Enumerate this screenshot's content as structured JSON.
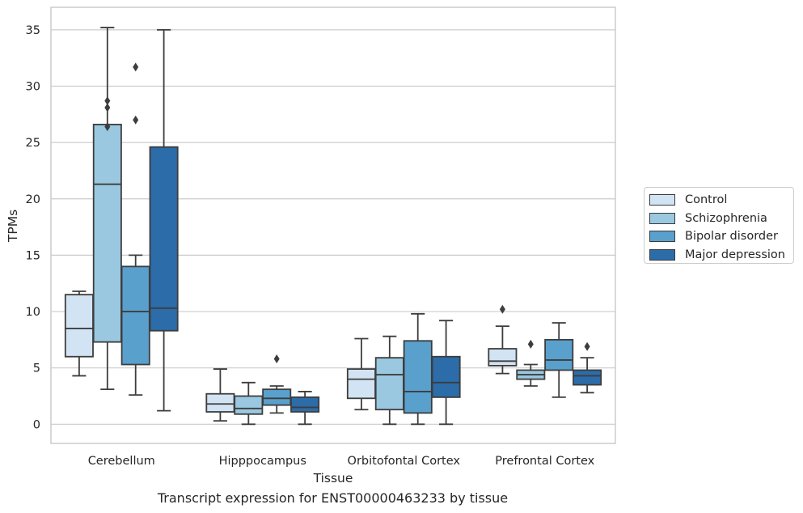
{
  "chart_data": {
    "type": "boxplot",
    "xlabel": "Tissue",
    "ylabel": "TPMs",
    "caption": "Transcript expression for ENST00000463233 by tissue",
    "ylim": [
      -1.7,
      37
    ],
    "yticks": [
      0,
      5,
      10,
      15,
      20,
      25,
      30,
      35
    ],
    "grid": true,
    "legend_position": "right",
    "categories": [
      "Cerebellum",
      "Hipppocampus",
      "Orbitofontal Cortex",
      "Prefrontal Cortex"
    ],
    "series": [
      {
        "name": "Control",
        "color": "#d2e3f3",
        "boxes": [
          {
            "whisker_low": 4.3,
            "q1": 6.0,
            "median": 8.5,
            "q3": 11.5,
            "whisker_high": 11.8,
            "outliers": []
          },
          {
            "whisker_low": 0.3,
            "q1": 1.1,
            "median": 1.8,
            "q3": 2.7,
            "whisker_high": 4.9,
            "outliers": []
          },
          {
            "whisker_low": 1.3,
            "q1": 2.3,
            "median": 4.0,
            "q3": 4.9,
            "whisker_high": 7.6,
            "outliers": []
          },
          {
            "whisker_low": 4.5,
            "q1": 5.2,
            "median": 5.6,
            "q3": 6.7,
            "whisker_high": 8.7,
            "outliers": [
              10.2
            ]
          }
        ]
      },
      {
        "name": "Schizophrenia",
        "color": "#9ac8e0",
        "boxes": [
          {
            "whisker_low": 3.1,
            "q1": 7.3,
            "median": 21.3,
            "q3": 26.6,
            "whisker_high": 35.2,
            "outliers": [
              26.4,
              28.1,
              28.7
            ]
          },
          {
            "whisker_low": 0.0,
            "q1": 0.9,
            "median": 1.4,
            "q3": 2.5,
            "whisker_high": 3.7,
            "outliers": []
          },
          {
            "whisker_low": 0.0,
            "q1": 1.3,
            "median": 4.4,
            "q3": 5.9,
            "whisker_high": 7.8,
            "outliers": []
          },
          {
            "whisker_low": 3.4,
            "q1": 4.0,
            "median": 4.4,
            "q3": 4.8,
            "whisker_high": 5.3,
            "outliers": [
              7.1
            ]
          }
        ]
      },
      {
        "name": "Bipolar disorder",
        "color": "#5aa0cd",
        "boxes": [
          {
            "whisker_low": 2.6,
            "q1": 5.3,
            "median": 10.0,
            "q3": 14.0,
            "whisker_high": 15.0,
            "outliers": [
              27.0,
              31.7
            ]
          },
          {
            "whisker_low": 1.0,
            "q1": 1.7,
            "median": 2.3,
            "q3": 3.1,
            "whisker_high": 3.4,
            "outliers": [
              5.8
            ]
          },
          {
            "whisker_low": 0.0,
            "q1": 1.0,
            "median": 2.9,
            "q3": 7.4,
            "whisker_high": 9.8,
            "outliers": []
          },
          {
            "whisker_low": 2.4,
            "q1": 4.8,
            "median": 5.7,
            "q3": 7.5,
            "whisker_high": 9.0,
            "outliers": []
          }
        ]
      },
      {
        "name": "Major depression",
        "color": "#2b6ca9",
        "boxes": [
          {
            "whisker_low": 1.2,
            "q1": 8.3,
            "median": 10.3,
            "q3": 24.6,
            "whisker_high": 35.0,
            "outliers": []
          },
          {
            "whisker_low": 0.0,
            "q1": 1.1,
            "median": 1.5,
            "q3": 2.4,
            "whisker_high": 2.9,
            "outliers": []
          },
          {
            "whisker_low": 0.0,
            "q1": 2.4,
            "median": 3.7,
            "q3": 6.0,
            "whisker_high": 9.2,
            "outliers": []
          },
          {
            "whisker_low": 2.8,
            "q1": 3.5,
            "median": 4.3,
            "q3": 4.8,
            "whisker_high": 5.9,
            "outliers": [
              6.9
            ]
          }
        ]
      }
    ]
  }
}
